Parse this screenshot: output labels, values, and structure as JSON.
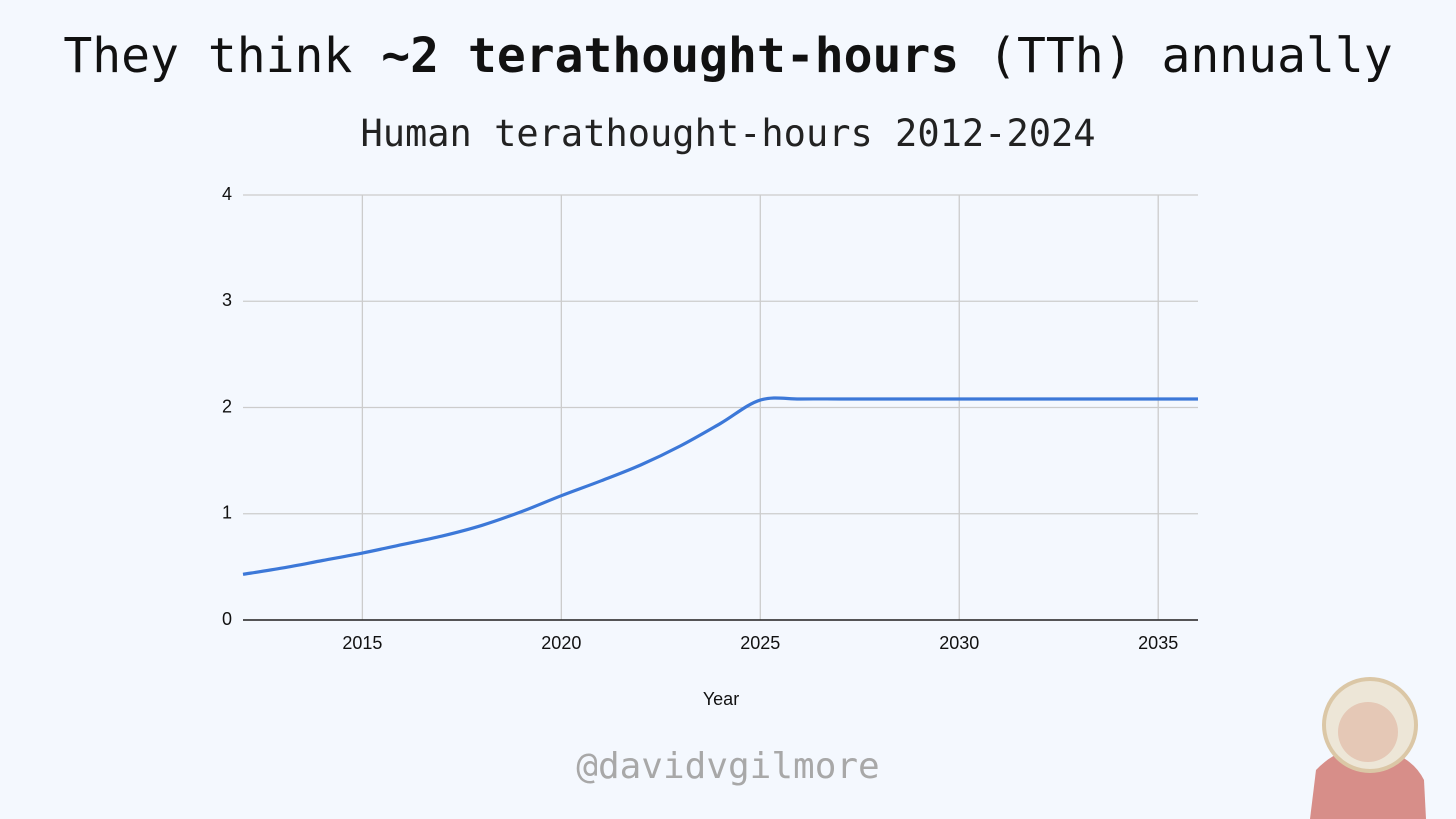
{
  "chart_data": {
    "type": "line",
    "title_parts": [
      "They think",
      "~2 terathought-hours",
      "(TTh) annually"
    ],
    "subtitle": "Human terathought-hours 2012-2024",
    "x_label": "Year",
    "x": [
      2012,
      2013,
      2014,
      2015,
      2016,
      2017,
      2018,
      2019,
      2020,
      2021,
      2022,
      2023,
      2024,
      2025,
      2026,
      2027,
      2028,
      2029,
      2030,
      2031,
      2032,
      2033,
      2034,
      2035,
      2036
    ],
    "values": [
      0.43,
      0.49,
      0.56,
      0.63,
      0.71,
      0.79,
      0.89,
      1.02,
      1.17,
      1.31,
      1.46,
      1.64,
      1.85,
      2.07,
      2.08,
      2.08,
      2.08,
      2.08,
      2.08,
      2.08,
      2.08,
      2.08,
      2.08,
      2.08,
      2.08
    ],
    "color": "#3c78d8",
    "xlim": [
      2012,
      2036
    ],
    "xticks": [
      2015,
      2020,
      2025,
      2030,
      2035
    ],
    "ylim": [
      0,
      4
    ],
    "yticks": [
      0,
      1,
      2,
      3,
      4
    ],
    "grid": true
  },
  "watermark": "@davidvgilmore"
}
